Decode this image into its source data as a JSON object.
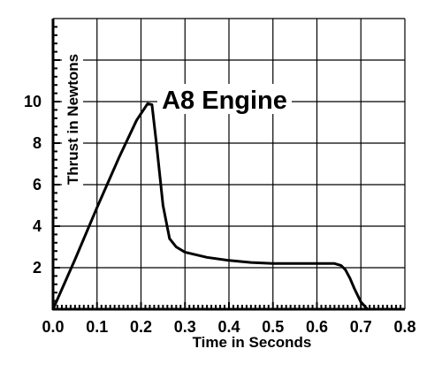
{
  "chart_data": {
    "type": "line",
    "title": "A8 Engine",
    "xlabel": "Time in Seconds",
    "ylabel": "Thrust in Newtons",
    "xlim": [
      0,
      0.8
    ],
    "ylim": [
      0,
      14
    ],
    "x_ticks": [
      "0.0",
      "0.1",
      "0.2",
      "0.3",
      "0.4",
      "0.5",
      "0.6",
      "0.7",
      "0.8"
    ],
    "y_ticks": [
      "2",
      "4",
      "6",
      "8",
      "10"
    ],
    "grid": true,
    "series": [
      {
        "x": [
          0.0,
          0.05,
          0.1,
          0.15,
          0.19,
          0.215,
          0.225,
          0.235,
          0.25,
          0.265,
          0.28,
          0.3,
          0.35,
          0.4,
          0.45,
          0.5,
          0.55,
          0.6,
          0.64,
          0.655,
          0.665,
          0.675,
          0.685,
          0.7,
          0.715
        ],
        "y": [
          0.0,
          2.4,
          4.9,
          7.3,
          9.1,
          9.9,
          9.85,
          8.0,
          5.0,
          3.4,
          3.0,
          2.75,
          2.5,
          2.35,
          2.25,
          2.2,
          2.2,
          2.2,
          2.2,
          2.1,
          1.9,
          1.5,
          1.0,
          0.35,
          0.0
        ]
      }
    ],
    "color": "#000000"
  }
}
